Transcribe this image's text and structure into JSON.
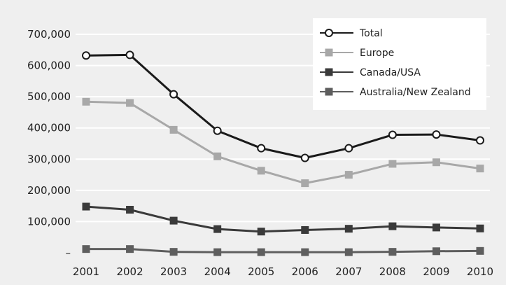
{
  "chart_data": {
    "type": "line",
    "categories": [
      "2001",
      "2002",
      "2003",
      "2004",
      "2005",
      "2006",
      "2007",
      "2008",
      "2009",
      "2010"
    ],
    "ylim": [
      0,
      700000
    ],
    "yticks": [
      {
        "value": 0,
        "label": "–"
      },
      {
        "value": 100000,
        "label": "100,000"
      },
      {
        "value": 200000,
        "label": "200,000"
      },
      {
        "value": 300000,
        "label": "300,000"
      },
      {
        "value": 400000,
        "label": "400,000"
      },
      {
        "value": 500000,
        "label": "500,000"
      },
      {
        "value": 600000,
        "label": "600,000"
      },
      {
        "value": 700000,
        "label": "700,000"
      }
    ],
    "grid": "horizontal",
    "legend_position": "top-right",
    "series": [
      {
        "name": "Total",
        "marker": "circle-open",
        "color": "#1a1a1a",
        "values": [
          632000,
          634000,
          508000,
          391000,
          335000,
          304000,
          335000,
          378000,
          379000,
          360000
        ]
      },
      {
        "name": "Europe",
        "marker": "square",
        "color": "#a8a8a8",
        "values": [
          484000,
          480000,
          394000,
          309000,
          263000,
          223000,
          250000,
          285000,
          290000,
          270000
        ]
      },
      {
        "name": "Canada/USA",
        "marker": "square",
        "color": "#3a3a3a",
        "values": [
          148000,
          138000,
          103000,
          76000,
          68000,
          73000,
          77000,
          85000,
          81000,
          78000
        ]
      },
      {
        "name": "Australia/New Zealand",
        "marker": "square",
        "color": "#5e5e5e",
        "values": [
          12000,
          12000,
          3000,
          2000,
          2000,
          2000,
          2000,
          3000,
          5000,
          6000
        ]
      }
    ]
  }
}
